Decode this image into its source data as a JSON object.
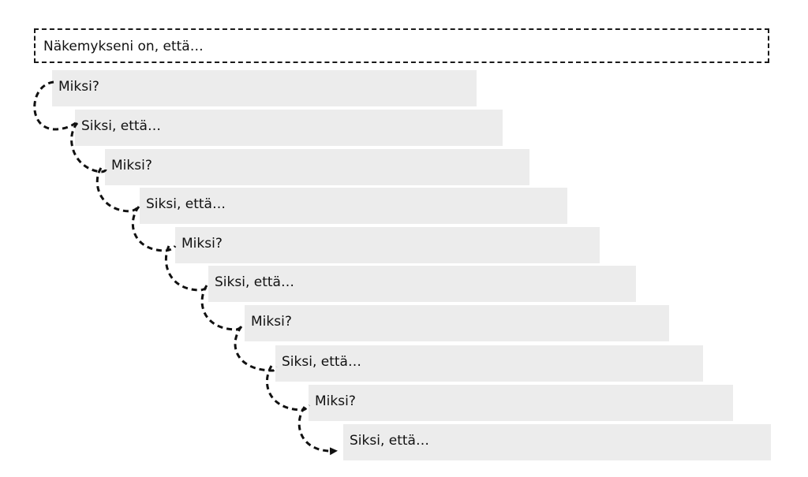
{
  "statement": {
    "text": "Näkemykseni on, että…"
  },
  "steps": [
    {
      "label": "Miksi?"
    },
    {
      "label": "Siksi, että…"
    },
    {
      "label": "Miksi?"
    },
    {
      "label": "Siksi, että…"
    },
    {
      "label": "Miksi?"
    },
    {
      "label": "Siksi, että…"
    },
    {
      "label": "Miksi?"
    },
    {
      "label": "Siksi, että…"
    },
    {
      "label": "Miksi?"
    },
    {
      "label": "Siksi, että…"
    }
  ],
  "colors": {
    "step_fill": "#ececec",
    "line": "#111111",
    "background": "#ffffff"
  },
  "icons": {
    "connector": "dashed-curved-arrow-icon"
  }
}
